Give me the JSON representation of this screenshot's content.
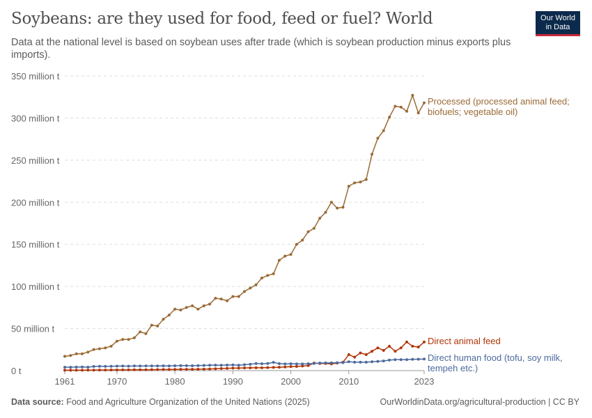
{
  "header": {
    "title": "Soybeans: are they used for food, feed or fuel? World",
    "subtitle": "Data at the national level is based on soybean uses after trade (which is soybean production minus exports plus imports).",
    "logo_line1": "Our World",
    "logo_line2": "in Data"
  },
  "footer": {
    "source_label": "Data source:",
    "source_text": "Food and Agriculture Organization of the United Nations (2025)",
    "right_text": "OurWorldinData.org/agricultural-production | CC BY"
  },
  "chart_data": {
    "type": "line",
    "title": "Soybeans: are they used for food, feed or fuel? World",
    "xlim": [
      1961,
      2023
    ],
    "ylim": [
      0,
      350
    ],
    "grid": "horizontal dashed",
    "legend": "inline right of line ends",
    "x_ticks": [
      "1961",
      "1970",
      "1980",
      "1990",
      "2000",
      "2010",
      "2023"
    ],
    "y_ticks": [
      "0 t",
      "50 million t",
      "100 million t",
      "150 million t",
      "200 million t",
      "250 million t",
      "300 million t",
      "350 million t"
    ],
    "y_tick_values": [
      0,
      50,
      100,
      150,
      200,
      250,
      300,
      350
    ],
    "x_start": 1961,
    "series": [
      {
        "name": "Processed (processed animal feed; biofuels; vegetable oil)",
        "label_lines": [
          "Processed (processed animal feed;",
          "biofuels; vegetable oil)"
        ],
        "color": "#9a6a35",
        "values": [
          17,
          18,
          20,
          20,
          22,
          25,
          26,
          27,
          29,
          35,
          37,
          37,
          39,
          46,
          44,
          54,
          53,
          61,
          66,
          73,
          72,
          75,
          77,
          73,
          77,
          79,
          86,
          85,
          83,
          88,
          88,
          94,
          98,
          102,
          110,
          113,
          115,
          131,
          136,
          138,
          150,
          155,
          165,
          169,
          181,
          188,
          200,
          193,
          194,
          219,
          223,
          224,
          227,
          257,
          276,
          285,
          301,
          314,
          313,
          308,
          327,
          306,
          318
        ]
      },
      {
        "name": "Direct animal feed",
        "label_lines": [
          "Direct animal feed"
        ],
        "color": "#b13507",
        "values": [
          0.5,
          0.5,
          0.5,
          0.5,
          0.6,
          0.6,
          0.7,
          0.7,
          0.8,
          0.8,
          0.9,
          0.9,
          1,
          1,
          1,
          1.1,
          1.2,
          1.3,
          1.3,
          1.4,
          1.5,
          1.5,
          1.6,
          1.7,
          1.8,
          2,
          2.2,
          2.5,
          2.7,
          3,
          3,
          3.2,
          3.3,
          3.4,
          3.4,
          3.6,
          3.8,
          4,
          4.3,
          4.8,
          5,
          5.5,
          6,
          9,
          8.5,
          8.5,
          8,
          9,
          10,
          19,
          16,
          21,
          19,
          23,
          27,
          24,
          29,
          23,
          27,
          34,
          29,
          28,
          34
        ]
      },
      {
        "name": "Direct human food (tofu, soy milk, tempeh etc.)",
        "label_lines": [
          "Direct human food (tofu, soy milk,",
          "tempeh etc.)"
        ],
        "color": "#4c6a9c",
        "values": [
          4,
          4,
          4.2,
          4.3,
          4.1,
          5,
          5.2,
          5.1,
          5.2,
          5.4,
          5.5,
          5.3,
          5.6,
          5.5,
          5.6,
          5.6,
          5.6,
          5.7,
          5.6,
          5.8,
          6,
          5.9,
          5.8,
          6,
          6.2,
          6.4,
          6.5,
          6.4,
          6.6,
          6.8,
          6.4,
          7,
          7.6,
          8.5,
          8.2,
          8.5,
          9.8,
          8.3,
          8,
          8.2,
          8,
          8,
          8.2,
          8.5,
          9,
          9.2,
          9.2,
          9.4,
          9.5,
          10.5,
          10,
          10,
          10,
          10.5,
          11,
          11.5,
          12.5,
          13,
          13,
          13,
          13.4,
          13.6,
          13.8
        ]
      }
    ]
  }
}
